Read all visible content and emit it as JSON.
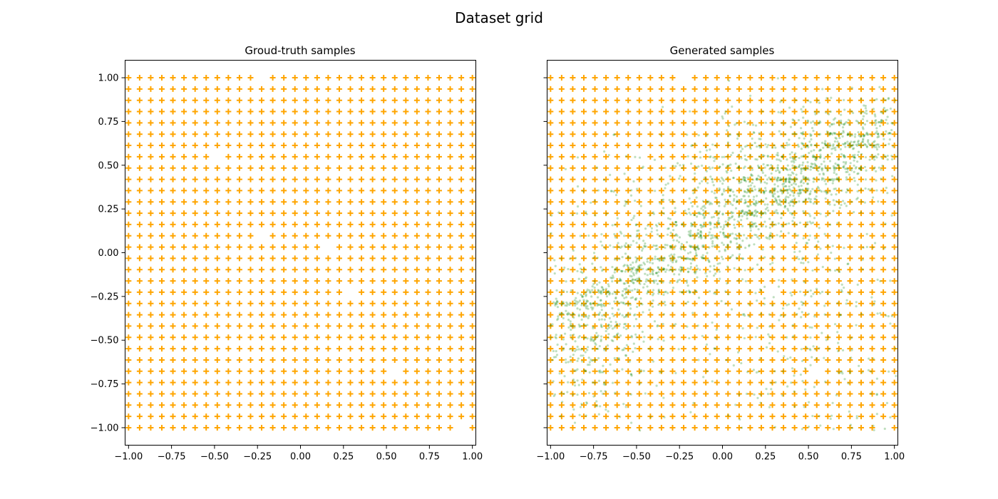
{
  "figure": {
    "title": "Dataset grid"
  },
  "colors": {
    "ground_truth": "#ffa500",
    "generated": "#008000",
    "axes": "#000000"
  },
  "chart_data": [
    {
      "type": "scatter",
      "title": "Groud-truth samples",
      "xlabel": "",
      "ylabel": "",
      "xlim": [
        -1.02,
        1.02
      ],
      "ylim": [
        -1.1,
        1.1
      ],
      "xticks": [
        "-1.00",
        "-0.75",
        "-0.50",
        "-0.25",
        "0.00",
        "0.25",
        "0.50",
        "0.75",
        "1.00"
      ],
      "yticks": [
        "-1.00",
        "-0.75",
        "-0.50",
        "-0.25",
        "0.00",
        "0.25",
        "0.50",
        "0.75",
        "1.00"
      ],
      "grid": false,
      "series": [
        {
          "marker": "plus",
          "color": "#ffa500",
          "grid_points": {
            "x_start": -1.0,
            "x_end": 1.0,
            "y_start": -1.0,
            "y_end": 1.0,
            "count_per_axis": 32
          },
          "missing_points": [
            [
              -0.226,
              1.0
            ],
            [
              0.935,
              -1.0
            ],
            [
              -0.484,
              0.548
            ],
            [
              -0.226,
              0.097
            ],
            [
              0.161,
              0.032
            ],
            [
              0.548,
              -0.677
            ],
            [
              0.29,
              -0.226
            ]
          ]
        }
      ]
    },
    {
      "type": "scatter",
      "title": "Generated samples",
      "xlabel": "",
      "ylabel": "",
      "xlim": [
        -1.02,
        1.02
      ],
      "ylim": [
        -1.1,
        1.1
      ],
      "xticks": [
        "-1.00",
        "-0.75",
        "-0.50",
        "-0.25",
        "0.00",
        "0.25",
        "0.50",
        "0.75",
        "1.00"
      ],
      "yticks": [
        "-1.00",
        "-0.75",
        "-0.50",
        "-0.25",
        "0.00",
        "0.25",
        "0.50",
        "0.75",
        "1.00"
      ],
      "grid": false,
      "series": [
        {
          "marker": "plus",
          "color": "#ffa500",
          "grid_points": {
            "x_start": -1.0,
            "x_end": 1.0,
            "y_start": -1.0,
            "y_end": 1.0,
            "count_per_axis": 32
          },
          "missing_points": [
            [
              -0.226,
              1.0
            ],
            [
              0.935,
              -1.0
            ],
            [
              -0.484,
              0.548
            ],
            [
              -0.226,
              0.097
            ],
            [
              0.161,
              0.032
            ],
            [
              0.548,
              -0.677
            ],
            [
              0.29,
              -0.226
            ]
          ]
        },
        {
          "marker": "dot",
          "color": "#008000",
          "alpha": 0.25,
          "count": 2600,
          "dense_band": {
            "from": [
              -1.0,
              -0.45
            ],
            "to": [
              1.0,
              0.75
            ]
          },
          "clusters": [
            {
              "center": [
                0.6,
                0.55
              ],
              "spread": 0.18
            },
            {
              "center": [
                0.15,
                0.4
              ],
              "spread": 0.2
            },
            {
              "center": [
                -0.45,
                0.05
              ],
              "spread": 0.3
            },
            {
              "center": [
                -0.8,
                -0.7
              ],
              "spread": 0.25
            },
            {
              "center": [
                0.5,
                -0.45
              ],
              "spread": 0.35
            }
          ]
        }
      ]
    }
  ]
}
